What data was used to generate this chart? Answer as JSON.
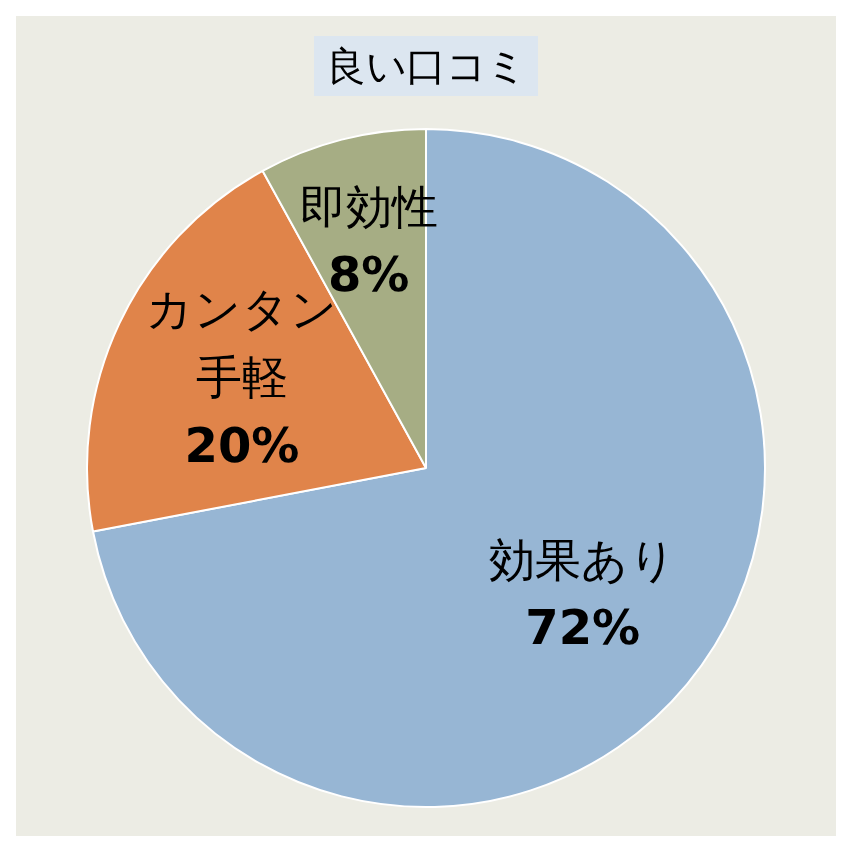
{
  "chart_data": {
    "type": "pie",
    "title": "良い口コミ",
    "categories": [
      "効果あり",
      "カンタン手軽",
      "即効性"
    ],
    "values": [
      72,
      20,
      8
    ],
    "colors": [
      "#97b6d4",
      "#e0844a",
      "#a6ad84"
    ],
    "value_labels": [
      "72%",
      "20%",
      "8%"
    ],
    "legend": false
  }
}
